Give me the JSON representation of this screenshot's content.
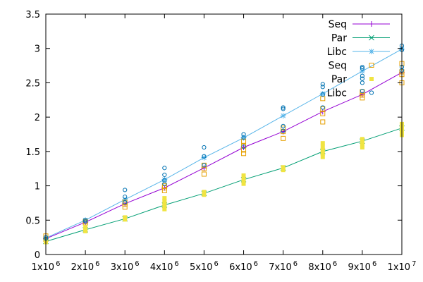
{
  "chart_data": {
    "type": "line",
    "title": "",
    "xlabel": "",
    "ylabel": "",
    "xlim": [
      1000000,
      10000000
    ],
    "ylim": [
      0,
      3.5
    ],
    "grid": false,
    "legend_position": "top-right",
    "x_ticks": [
      {
        "value": 1000000,
        "mantissa": "1x10",
        "exp": "6"
      },
      {
        "value": 2000000,
        "mantissa": "2x10",
        "exp": "6"
      },
      {
        "value": 3000000,
        "mantissa": "3x10",
        "exp": "6"
      },
      {
        "value": 4000000,
        "mantissa": "4x10",
        "exp": "6"
      },
      {
        "value": 5000000,
        "mantissa": "5x10",
        "exp": "6"
      },
      {
        "value": 6000000,
        "mantissa": "6x10",
        "exp": "6"
      },
      {
        "value": 7000000,
        "mantissa": "7x10",
        "exp": "6"
      },
      {
        "value": 8000000,
        "mantissa": "8x10",
        "exp": "6"
      },
      {
        "value": 9000000,
        "mantissa": "9x10",
        "exp": "6"
      },
      {
        "value": 10000000,
        "mantissa": "1x10",
        "exp": "7"
      }
    ],
    "y_ticks": [
      {
        "value": 0,
        "label": "0"
      },
      {
        "value": 0.5,
        "label": "0.5"
      },
      {
        "value": 1,
        "label": "1"
      },
      {
        "value": 1.5,
        "label": "1.5"
      },
      {
        "value": 2,
        "label": "2"
      },
      {
        "value": 2.5,
        "label": "2.5"
      },
      {
        "value": 3,
        "label": "3"
      },
      {
        "value": 3.5,
        "label": "3.5"
      }
    ],
    "x": [
      1000000,
      2000000,
      3000000,
      4000000,
      5000000,
      6000000,
      7000000,
      8000000,
      9000000,
      10000000
    ],
    "series": [
      {
        "name": "Seq",
        "kind": "line",
        "marker": "plus",
        "color": "#9400d3",
        "values": [
          0.23,
          0.47,
          0.74,
          0.97,
          1.26,
          1.56,
          1.79,
          2.08,
          2.33,
          2.65
        ]
      },
      {
        "name": "Par",
        "kind": "line",
        "marker": "x",
        "color": "#009e73",
        "values": [
          0.19,
          0.36,
          0.52,
          0.72,
          0.89,
          1.09,
          1.26,
          1.5,
          1.65,
          1.84
        ]
      },
      {
        "name": "Libc",
        "kind": "line",
        "marker": "star",
        "color": "#56b4e9",
        "values": [
          0.24,
          0.5,
          0.8,
          1.09,
          1.41,
          1.7,
          2.02,
          2.34,
          2.67,
          2.99
        ]
      },
      {
        "name": "Seq",
        "kind": "points",
        "marker": "open-square",
        "color": "#e69f00",
        "points": [
          [
            1000000,
            0.22
          ],
          [
            1000000,
            0.27
          ],
          [
            2000000,
            0.46
          ],
          [
            2000000,
            0.48
          ],
          [
            3000000,
            0.69
          ],
          [
            3000000,
            0.73
          ],
          [
            3000000,
            0.76
          ],
          [
            4000000,
            0.93
          ],
          [
            4000000,
            0.97
          ],
          [
            4000000,
            1.0
          ],
          [
            5000000,
            1.17
          ],
          [
            5000000,
            1.25
          ],
          [
            5000000,
            1.3
          ],
          [
            6000000,
            1.47
          ],
          [
            6000000,
            1.52
          ],
          [
            6000000,
            1.58
          ],
          [
            6000000,
            1.65
          ],
          [
            7000000,
            1.69
          ],
          [
            7000000,
            1.79
          ],
          [
            7000000,
            1.84
          ],
          [
            8000000,
            1.93
          ],
          [
            8000000,
            2.05
          ],
          [
            8000000,
            2.12
          ],
          [
            8000000,
            2.27
          ],
          [
            9000000,
            2.28
          ],
          [
            9000000,
            2.32
          ],
          [
            9000000,
            2.37
          ],
          [
            10000000,
            2.5
          ],
          [
            10000000,
            2.62
          ],
          [
            10000000,
            2.66
          ],
          [
            10000000,
            2.78
          ]
        ]
      },
      {
        "name": "Par",
        "kind": "points",
        "marker": "filled-square",
        "color": "#f0e442",
        "points": [
          [
            1000000,
            0.18
          ],
          [
            1000000,
            0.21
          ],
          [
            2000000,
            0.34
          ],
          [
            2000000,
            0.37
          ],
          [
            2000000,
            0.4
          ],
          [
            3000000,
            0.51
          ],
          [
            3000000,
            0.54
          ],
          [
            4000000,
            0.66
          ],
          [
            4000000,
            0.7
          ],
          [
            4000000,
            0.74
          ],
          [
            4000000,
            0.78
          ],
          [
            4000000,
            0.82
          ],
          [
            5000000,
            0.87
          ],
          [
            5000000,
            0.91
          ],
          [
            6000000,
            1.03
          ],
          [
            6000000,
            1.07
          ],
          [
            6000000,
            1.11
          ],
          [
            6000000,
            1.15
          ],
          [
            7000000,
            1.23
          ],
          [
            7000000,
            1.27
          ],
          [
            8000000,
            1.42
          ],
          [
            8000000,
            1.47
          ],
          [
            8000000,
            1.52
          ],
          [
            8000000,
            1.57
          ],
          [
            8000000,
            1.62
          ],
          [
            9000000,
            1.56
          ],
          [
            9000000,
            1.6
          ],
          [
            9000000,
            1.64
          ],
          [
            9000000,
            1.68
          ],
          [
            10000000,
            1.74
          ],
          [
            10000000,
            1.78
          ],
          [
            10000000,
            1.82
          ],
          [
            10000000,
            1.86
          ],
          [
            10000000,
            1.9
          ]
        ]
      },
      {
        "name": "Libc",
        "kind": "points",
        "marker": "open-circle",
        "color": "#0072b2",
        "points": [
          [
            1000000,
            0.23
          ],
          [
            1000000,
            0.25
          ],
          [
            2000000,
            0.48
          ],
          [
            2000000,
            0.5
          ],
          [
            3000000,
            0.76
          ],
          [
            3000000,
            0.84
          ],
          [
            3000000,
            0.94
          ],
          [
            4000000,
            1.03
          ],
          [
            4000000,
            1.08
          ],
          [
            4000000,
            1.16
          ],
          [
            4000000,
            1.26
          ],
          [
            5000000,
            1.3
          ],
          [
            5000000,
            1.43
          ],
          [
            5000000,
            1.56
          ],
          [
            6000000,
            1.57
          ],
          [
            6000000,
            1.7
          ],
          [
            6000000,
            1.75
          ],
          [
            7000000,
            1.8
          ],
          [
            7000000,
            1.87
          ],
          [
            7000000,
            2.12
          ],
          [
            7000000,
            2.14
          ],
          [
            8000000,
            2.14
          ],
          [
            8000000,
            2.33
          ],
          [
            8000000,
            2.44
          ],
          [
            8000000,
            2.48
          ],
          [
            9000000,
            2.38
          ],
          [
            9000000,
            2.5
          ],
          [
            9000000,
            2.56
          ],
          [
            9000000,
            2.6
          ],
          [
            9000000,
            2.71
          ],
          [
            9000000,
            2.73
          ],
          [
            10000000,
            2.68
          ],
          [
            10000000,
            2.73
          ],
          [
            10000000,
            2.98
          ],
          [
            10000000,
            3.04
          ]
        ]
      }
    ]
  }
}
